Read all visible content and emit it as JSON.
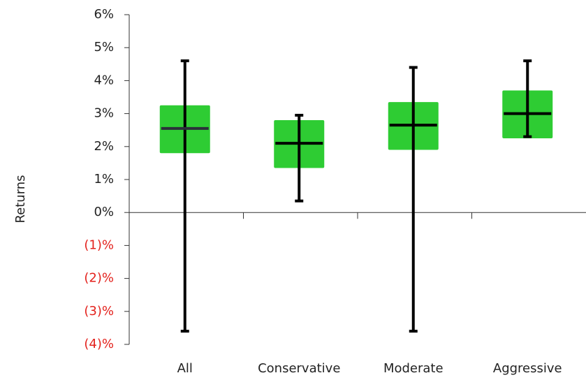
{
  "chart_data": {
    "type": "box",
    "y_label": "Returns",
    "categories": [
      "All",
      "Conservative",
      "Moderate",
      "Aggressive"
    ],
    "whisker_high": [
      4.6,
      2.95,
      4.4,
      4.6
    ],
    "whisker_low": [
      -3.6,
      0.35,
      -3.6,
      2.3
    ],
    "box_high": [
      3.25,
      2.8,
      3.35,
      3.7
    ],
    "box_low": [
      1.8,
      1.35,
      1.9,
      2.25
    ],
    "median": [
      2.55,
      2.1,
      2.65,
      3.0
    ],
    "box_color": "#2ecc33",
    "whisker_color": "#000000",
    "median_colors": [
      "#2b2f3a",
      "#000000",
      "#000000",
      "#000000"
    ],
    "negative_label_color": "#e3211c",
    "ylim": [
      -4,
      6
    ],
    "yticks": [
      {
        "value": -4,
        "label": "(4)%"
      },
      {
        "value": -3,
        "label": "(3)%"
      },
      {
        "value": -2,
        "label": "(2)%"
      },
      {
        "value": -1,
        "label": "(1)%"
      },
      {
        "value": 0,
        "label": "0%"
      },
      {
        "value": 1,
        "label": "1%"
      },
      {
        "value": 2,
        "label": "2%"
      },
      {
        "value": 3,
        "label": "3%"
      },
      {
        "value": 4,
        "label": "4%"
      },
      {
        "value": 5,
        "label": "5%"
      },
      {
        "value": 6,
        "label": "6%"
      }
    ]
  }
}
